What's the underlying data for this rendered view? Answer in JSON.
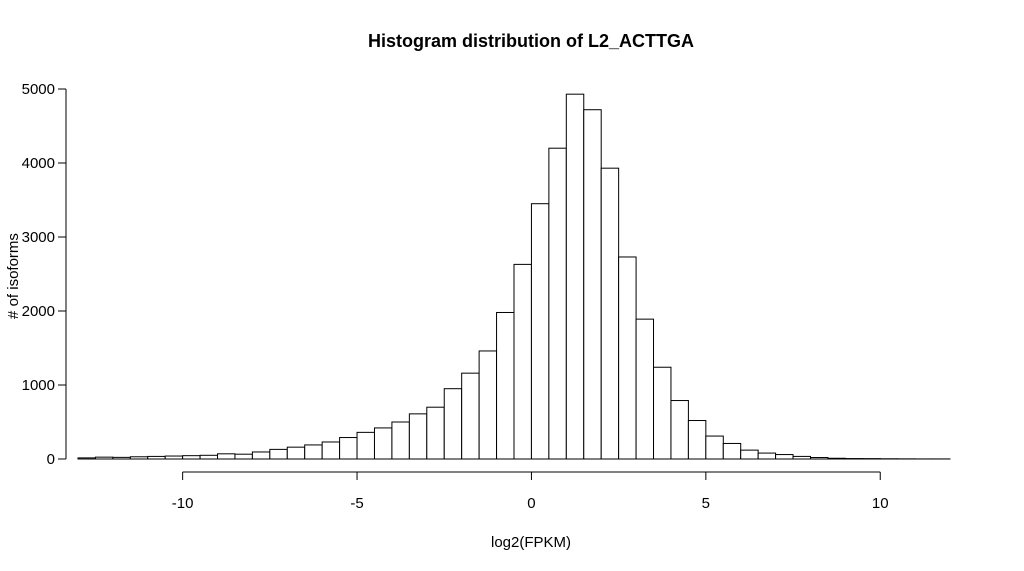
{
  "chart_data": {
    "type": "bar",
    "title": "Histogram distribution of L2_ACTTGA",
    "xlabel": "log2(FPKM)",
    "ylabel": "# of isoforms",
    "xlim": [
      -13,
      12
    ],
    "ylim": [
      0,
      5000
    ],
    "x_ticks": [
      -10,
      -5,
      0,
      5,
      10
    ],
    "y_ticks": [
      0,
      1000,
      2000,
      3000,
      4000,
      5000
    ],
    "bin_width": 0.5,
    "bin_starts": [
      -13,
      -12.5,
      -12,
      -11.5,
      -11,
      -10.5,
      -10,
      -9.5,
      -9,
      -8.5,
      -8,
      -7.5,
      -7,
      -6.5,
      -6,
      -5.5,
      -5,
      -4.5,
      -4,
      -3.5,
      -3,
      -2.5,
      -2,
      -1.5,
      -1,
      -0.5,
      0,
      0.5,
      1,
      1.5,
      2,
      2.5,
      3,
      3.5,
      4,
      4.5,
      5,
      5.5,
      6,
      6.5,
      7,
      7.5,
      8,
      8.5,
      9,
      9.5,
      10,
      10.5,
      11,
      11.5
    ],
    "values": [
      15,
      25,
      22,
      30,
      35,
      40,
      45,
      50,
      70,
      65,
      95,
      130,
      160,
      190,
      230,
      290,
      360,
      420,
      500,
      610,
      700,
      950,
      1160,
      1460,
      1980,
      2630,
      3450,
      4200,
      4930,
      4720,
      3930,
      2730,
      1890,
      1240,
      790,
      520,
      310,
      210,
      120,
      80,
      60,
      35,
      20,
      10,
      6,
      5,
      3,
      2,
      1,
      1
    ],
    "grid": false,
    "legend": "none"
  }
}
